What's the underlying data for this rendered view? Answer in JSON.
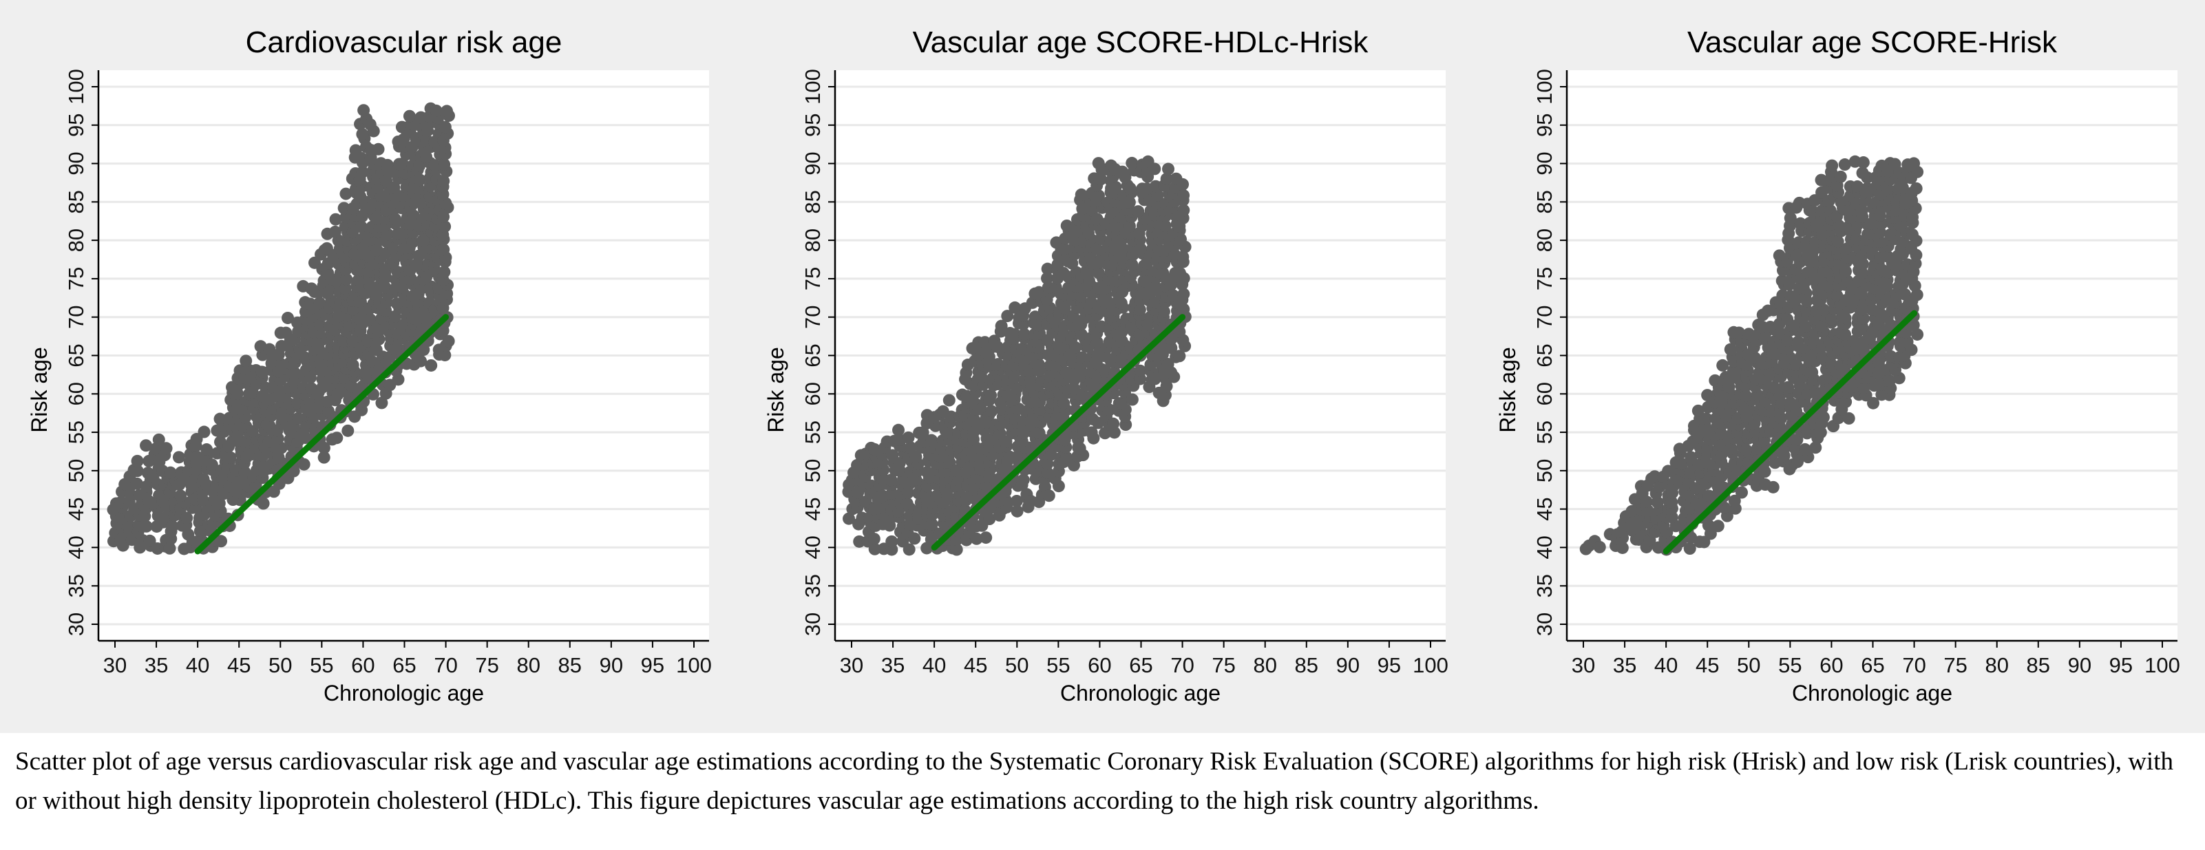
{
  "figure": {
    "caption": "Scatter plot of age versus cardiovascular risk age and vascular age estimations according to the Systematic Coronary Risk Evaluation (SCORE) algorithms for high risk (Hrisk) and low risk (Lrisk countries), with or without high density lipoprotein cholesterol (HDLc). This figure depictures vascular age estimations according to the high risk country algorithms."
  },
  "colors": {
    "points": "#5f5f5f",
    "identity_line": "#0a7a0a",
    "grid": "#e8e8e8",
    "background": "#efefef",
    "plot_bg": "#ffffff"
  },
  "chart_data": [
    {
      "type": "scatter",
      "title": "Cardiovascular risk age",
      "xlabel": "Chronologic age",
      "ylabel": "Risk age",
      "xlim": [
        30,
        100
      ],
      "ylim": [
        30,
        100
      ],
      "xticks": [
        30,
        35,
        40,
        45,
        50,
        55,
        60,
        65,
        70,
        75,
        80,
        85,
        90,
        95,
        100
      ],
      "yticks": [
        30,
        35,
        40,
        45,
        50,
        55,
        60,
        65,
        70,
        75,
        80,
        85,
        90,
        95,
        100
      ],
      "grid": "horizontal",
      "reference_line": {
        "x": [
          40,
          70
        ],
        "y": [
          39.5,
          70
        ]
      },
      "point_envelope": {
        "x": [
          30,
          32,
          35,
          38,
          40,
          42,
          45,
          48,
          50,
          52,
          55,
          58,
          60,
          63,
          65,
          68,
          70
        ],
        "min": [
          40,
          40,
          40,
          40,
          40,
          40,
          44,
          46,
          48,
          50,
          52,
          55,
          58,
          60,
          64,
          64,
          65
        ],
        "max": [
          46,
          50,
          54,
          52,
          54,
          55,
          64,
          66,
          68,
          72,
          79,
          86,
          97,
          90,
          95,
          97,
          97
        ]
      }
    },
    {
      "type": "scatter",
      "title": "Vascular age SCORE-HDLc-Hrisk",
      "xlabel": "Chronologic age",
      "ylabel": "Risk age",
      "xlim": [
        30,
        100
      ],
      "ylim": [
        30,
        100
      ],
      "xticks": [
        30,
        35,
        40,
        45,
        50,
        55,
        60,
        65,
        70,
        75,
        80,
        85,
        90,
        95,
        100
      ],
      "yticks": [
        30,
        35,
        40,
        45,
        50,
        55,
        60,
        65,
        70,
        75,
        80,
        85,
        90,
        95,
        100
      ],
      "grid": "horizontal",
      "reference_line": {
        "x": [
          40,
          70
        ],
        "y": [
          40,
          70
        ]
      },
      "point_envelope": {
        "x": [
          30,
          33,
          35,
          38,
          40,
          43,
          45,
          48,
          50,
          53,
          55,
          58,
          60,
          63,
          65,
          68,
          70
        ],
        "min": [
          42,
          40,
          40,
          40,
          40,
          40,
          40,
          44,
          45,
          46,
          48,
          52,
          55,
          55,
          62,
          59,
          64
        ],
        "max": [
          52,
          53,
          54,
          56,
          57,
          61,
          67,
          69,
          71,
          74,
          80,
          86,
          90,
          90,
          90,
          89,
          87
        ]
      }
    },
    {
      "type": "scatter",
      "title": "Vascular age SCORE-Hrisk",
      "xlabel": "Chronologic age",
      "ylabel": "Risk age",
      "xlim": [
        30,
        100
      ],
      "ylim": [
        30,
        100
      ],
      "xticks": [
        30,
        35,
        40,
        45,
        50,
        55,
        60,
        65,
        70,
        75,
        80,
        85,
        90,
        95,
        100
      ],
      "yticks": [
        30,
        35,
        40,
        45,
        50,
        55,
        60,
        65,
        70,
        75,
        80,
        85,
        90,
        95,
        100
      ],
      "grid": "horizontal",
      "reference_line": {
        "x": [
          40,
          70
        ],
        "y": [
          39.5,
          70.5
        ]
      },
      "point_envelope": {
        "x": [
          30,
          34,
          37,
          40,
          43,
          45,
          48,
          50,
          53,
          55,
          58,
          60,
          63,
          65,
          68,
          70
        ],
        "min": [
          40,
          40,
          40,
          40,
          40,
          41,
          45,
          47,
          48,
          50,
          53,
          56,
          58,
          59,
          61,
          66
        ],
        "max": [
          40,
          42,
          48,
          50,
          56,
          60,
          68,
          68,
          72,
          85,
          85,
          90,
          90,
          90,
          90,
          90
        ]
      }
    }
  ]
}
